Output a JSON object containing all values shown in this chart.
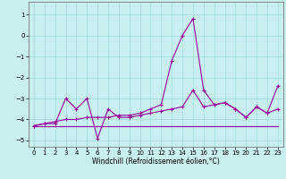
{
  "title": "",
  "xlabel": "Windchill (Refroidissement éolien,°C)",
  "ylabel": "",
  "bg_color": "#c8eef0",
  "line_color": "#990099",
  "grid_color": "#a0d8dc",
  "xlim": [
    -0.5,
    23.5
  ],
  "ylim": [
    -5.3,
    1.6
  ],
  "yticks": [
    1,
    0,
    -1,
    -2,
    -3,
    -4,
    -5
  ],
  "xticks": [
    0,
    1,
    2,
    3,
    4,
    5,
    6,
    7,
    8,
    9,
    10,
    11,
    12,
    13,
    14,
    15,
    16,
    17,
    18,
    19,
    20,
    21,
    22,
    23
  ],
  "line1": {
    "x": [
      0,
      1,
      2,
      3,
      4,
      5,
      6,
      7,
      8,
      9,
      10,
      11,
      12,
      13,
      14,
      15,
      16,
      17,
      18,
      19,
      20,
      21,
      22,
      23
    ],
    "y": [
      -4.3,
      -4.3,
      -4.3,
      -4.3,
      -4.3,
      -4.3,
      -4.3,
      -4.3,
      -4.3,
      -4.3,
      -4.3,
      -4.3,
      -4.3,
      -4.3,
      -4.3,
      -4.3,
      -4.3,
      -4.3,
      -4.3,
      -4.3,
      -4.3,
      -4.3,
      -4.3,
      -4.3
    ]
  },
  "line2": {
    "x": [
      0,
      1,
      2,
      3,
      4,
      5,
      6,
      7,
      8,
      9,
      10,
      11,
      12,
      13,
      14,
      15,
      16,
      17,
      18,
      19,
      20,
      21,
      22,
      23
    ],
    "y": [
      -4.3,
      -4.2,
      -4.2,
      -3.0,
      -3.5,
      -3.0,
      -4.9,
      -3.5,
      -3.9,
      -3.9,
      -3.8,
      -3.7,
      -3.6,
      -3.5,
      -3.4,
      -2.6,
      -3.4,
      -3.3,
      -3.2,
      -3.5,
      -3.9,
      -3.4,
      -3.7,
      -3.5
    ]
  },
  "line3": {
    "x": [
      0,
      1,
      2,
      3,
      4,
      5,
      6,
      7,
      8,
      9,
      10,
      11,
      12,
      13,
      14,
      15,
      16,
      17,
      18,
      19,
      20,
      21,
      22,
      23
    ],
    "y": [
      -4.3,
      -4.2,
      -4.1,
      -4.0,
      -4.0,
      -3.9,
      -3.9,
      -3.9,
      -3.8,
      -3.8,
      -3.7,
      -3.5,
      -3.3,
      -1.2,
      0.0,
      0.8,
      -2.6,
      -3.3,
      -3.2,
      -3.5,
      -3.9,
      -3.4,
      -3.7,
      -2.4
    ]
  }
}
